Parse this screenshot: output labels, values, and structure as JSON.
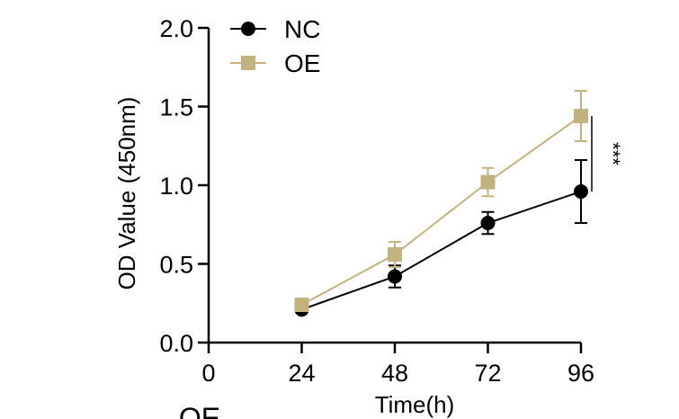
{
  "chart_data": {
    "type": "line",
    "title": "",
    "xlabel": "Time(h)",
    "ylabel": "OD Value (450nm)",
    "x_ticks": [
      "0",
      "24",
      "48",
      "72",
      "96"
    ],
    "y_ticks": [
      "0.0",
      "0.5",
      "1.0",
      "1.5",
      "2.0"
    ],
    "xlim": [
      0,
      96
    ],
    "ylim": [
      0,
      2.0
    ],
    "grid": false,
    "legend_position": "top-left",
    "series": [
      {
        "name": "NC",
        "color": "#000000",
        "marker": "circle",
        "x": [
          24,
          48,
          72,
          96
        ],
        "y": [
          0.21,
          0.42,
          0.76,
          0.96
        ],
        "error": [
          0.02,
          0.07,
          0.07,
          0.2
        ]
      },
      {
        "name": "OE",
        "color": "#c2b280",
        "marker": "square",
        "x": [
          24,
          48,
          72,
          96
        ],
        "y": [
          0.24,
          0.56,
          1.02,
          1.44
        ],
        "error": [
          0.02,
          0.08,
          0.09,
          0.16
        ]
      }
    ],
    "annotations": [
      {
        "text": "***",
        "x": 96,
        "y_from": 0.96,
        "y_to": 1.44
      }
    ],
    "bottom_text": "OE"
  }
}
